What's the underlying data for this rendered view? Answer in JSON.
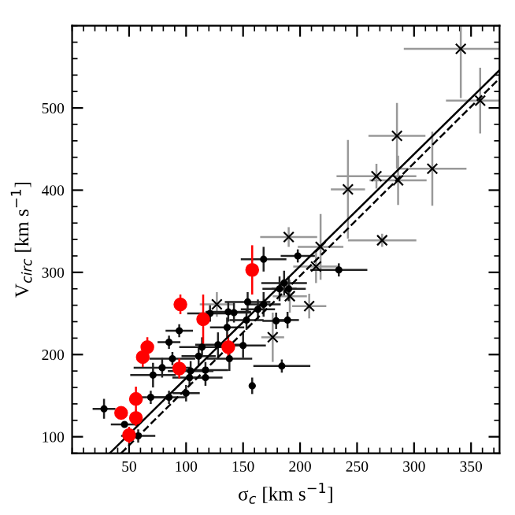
{
  "chart_data": {
    "type": "scatter",
    "xlabel": "σ$_{c}$ [km s$^{−1}$]",
    "ylabel": "V$_{circ}$ [km s$^{−1}$]",
    "xlim": [
      0,
      375
    ],
    "ylim": [
      80,
      600
    ],
    "xticks": [
      50,
      100,
      150,
      200,
      250,
      300,
      350
    ],
    "yticks": [
      100,
      200,
      300,
      400,
      500
    ],
    "grid": false,
    "legend": false,
    "series": [
      {
        "marker": "cross",
        "color": "#000000",
        "x": [
          341,
          358,
          285,
          316,
          267,
          286,
          242,
          190,
          272,
          218,
          176,
          214,
          208,
          127,
          191
        ],
        "values": [
          572,
          509,
          466,
          426,
          417,
          412,
          401,
          343,
          339,
          331,
          221,
          307,
          259,
          261,
          271
        ],
        "xerrors": [
          50,
          30,
          25,
          30,
          35,
          25,
          15,
          25,
          30,
          20,
          10,
          20,
          15,
          15,
          15
        ],
        "errors": [
          60,
          40,
          40,
          45,
          15,
          30,
          60,
          12,
          8,
          40,
          30,
          20,
          15,
          15,
          20
        ]
      },
      {
        "marker": "circle",
        "color": "#000000",
        "x": [
          168,
          198,
          234,
          186,
          182,
          190,
          168,
          154,
          163,
          137,
          121,
          94,
          85,
          153,
          189,
          179,
          136,
          150,
          128,
          114,
          111,
          88,
          79,
          71,
          104,
          117,
          117,
          103,
          138,
          184,
          158,
          100,
          85,
          69,
          28,
          46,
          58,
          142
        ],
        "values": [
          316,
          320,
          303,
          287,
          280,
          280,
          261,
          264,
          255,
          252,
          250,
          229,
          215,
          242,
          242,
          241,
          233,
          211,
          212,
          209,
          198,
          195,
          184,
          175,
          180,
          181,
          172,
          172,
          195,
          186,
          162,
          153,
          148,
          148,
          134,
          115,
          101,
          251
        ],
        "xerrors": [
          20,
          15,
          25,
          20,
          15,
          15,
          15,
          20,
          15,
          20,
          20,
          12,
          10,
          15,
          10,
          12,
          15,
          20,
          20,
          20,
          15,
          20,
          25,
          20,
          20,
          20,
          15,
          15,
          20,
          25,
          3,
          12,
          15,
          15,
          10,
          12,
          15,
          15
        ],
        "errors": [
          15,
          8,
          8,
          15,
          15,
          15,
          15,
          12,
          12,
          12,
          10,
          8,
          8,
          12,
          10,
          10,
          12,
          15,
          15,
          12,
          12,
          8,
          12,
          15,
          12,
          10,
          10,
          10,
          15,
          8,
          10,
          10,
          8,
          8,
          12,
          null,
          8,
          12
        ]
      },
      {
        "marker": "circle",
        "color": "#ff0000",
        "x": [
          158,
          95,
          115,
          66,
          62,
          137,
          94,
          56,
          43,
          56,
          50
        ],
        "values": [
          303,
          261,
          243,
          209,
          197,
          209,
          183,
          146,
          129,
          123,
          102
        ],
        "errors": [
          30,
          12,
          30,
          12,
          12,
          15,
          12,
          15,
          8,
          10,
          10
        ]
      },
      {
        "type": "line",
        "line_style": "solid",
        "color": "#000000",
        "x": [
          33,
          375
        ],
        "values": [
          80,
          546
        ]
      },
      {
        "type": "line",
        "line_style": "dashed",
        "color": "#000000",
        "x": [
          43,
          375
        ],
        "values": [
          80,
          536
        ]
      }
    ]
  }
}
